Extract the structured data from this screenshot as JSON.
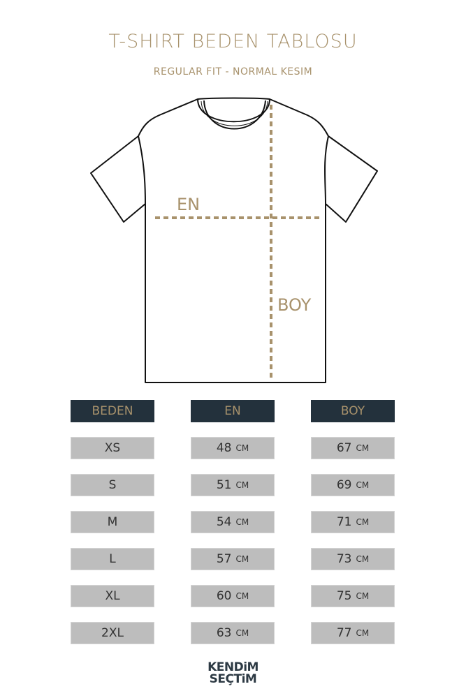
{
  "header": {
    "title": "T-SHIRT BEDEN TABLOSU",
    "subtitle": "REGULAR FIT - NORMAL KESIM"
  },
  "diagram": {
    "width_label": "EN",
    "length_label": "BOY",
    "accent_color": "#a8926c"
  },
  "table": {
    "headers": [
      "BEDEN",
      "EN",
      "BOY"
    ],
    "unit": "CM",
    "rows": [
      {
        "size": "XS",
        "en": "48",
        "boy": "67"
      },
      {
        "size": "S",
        "en": "51",
        "boy": "69"
      },
      {
        "size": "M",
        "en": "54",
        "boy": "71"
      },
      {
        "size": "L",
        "en": "57",
        "boy": "73"
      },
      {
        "size": "XL",
        "en": "60",
        "boy": "75"
      },
      {
        "size": "2XL",
        "en": "63",
        "boy": "77"
      }
    ],
    "header_bg": "#23313c",
    "cell_bg": "#bdbdbd"
  },
  "logo": {
    "line1": "KENDiM",
    "line2": "SEÇTiM"
  }
}
